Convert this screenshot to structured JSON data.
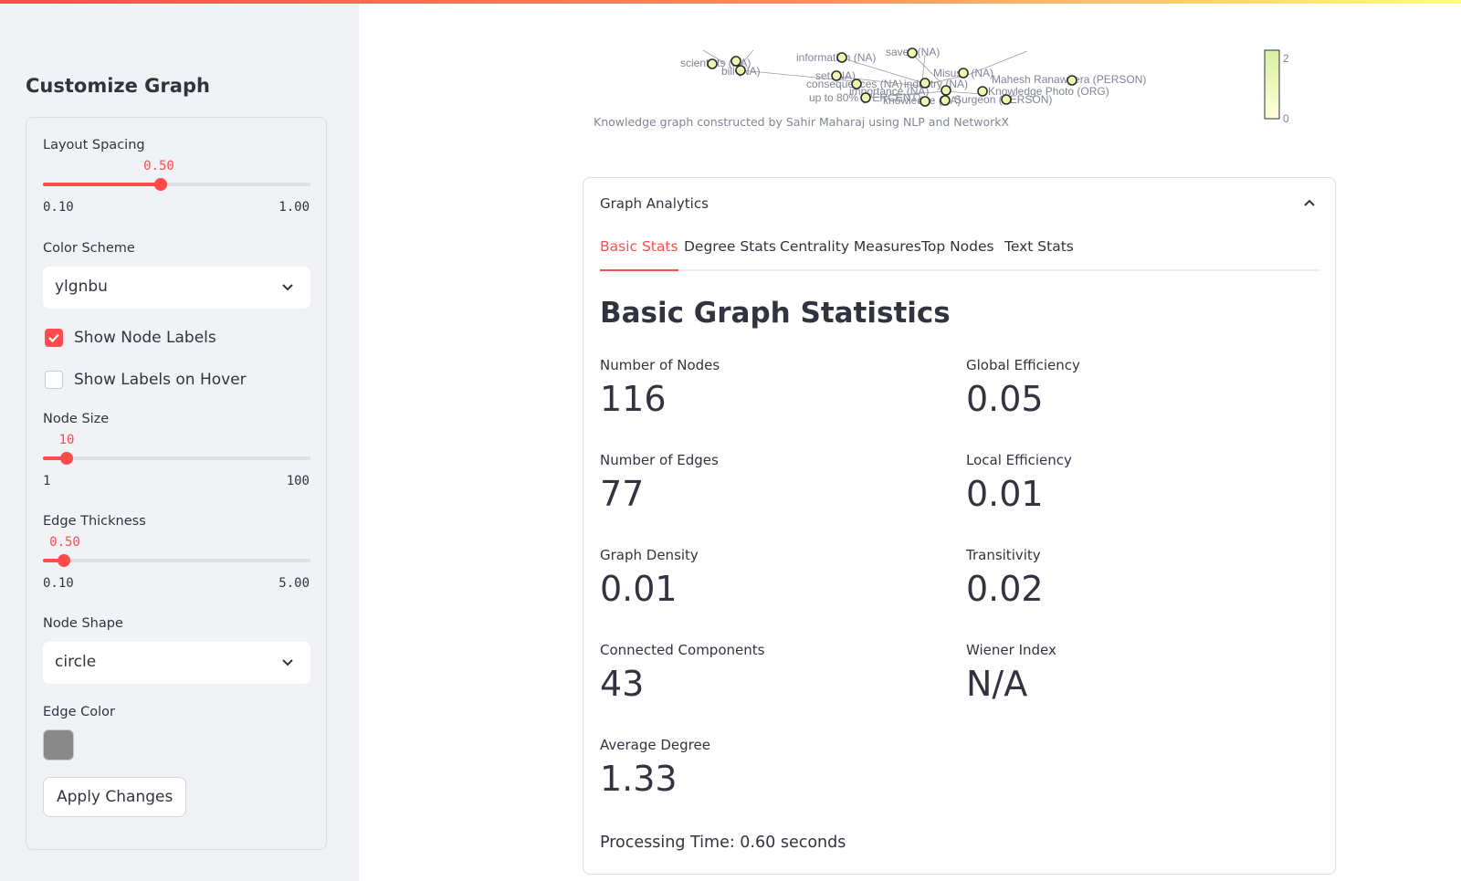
{
  "sidebar": {
    "title": "Customize Graph",
    "layout_spacing": {
      "label": "Layout Spacing",
      "value": "0.50",
      "min": "0.10",
      "max": "1.00",
      "fraction": 0.44
    },
    "color_scheme": {
      "label": "Color Scheme",
      "value": "ylgnbu"
    },
    "show_node_labels": {
      "label": "Show Node Labels",
      "checked": true
    },
    "show_labels_on_hover": {
      "label": "Show Labels on Hover",
      "checked": false
    },
    "node_size": {
      "label": "Node Size",
      "value": "10",
      "min": "1",
      "max": "100",
      "fraction": 0.09
    },
    "edge_thickness": {
      "label": "Edge Thickness",
      "value": "0.50",
      "min": "0.10",
      "max": "5.00",
      "fraction": 0.08
    },
    "node_shape": {
      "label": "Node Shape",
      "value": "circle"
    },
    "edge_color": {
      "label": "Edge Color",
      "color": "#888888"
    },
    "apply_button": "Apply Changes"
  },
  "graph": {
    "caption": "Knowledge graph constructed by Sahir Maharaj using NLP and NetworkX",
    "colorbar_ticks": [
      "2",
      "0"
    ],
    "node_labels": [
      "scientists (NA)",
      "bill (NA)",
      "information (NA)",
      "saves (NA)",
      "set (NA)",
      "consequences (NA)",
      "industry (NA)",
      "importance (NA)",
      "up to 80% (PERCENT)",
      "knowledge (NA)",
      "Misuse (NA)",
      "Mahesh Ranaweera (PERSON)",
      "Knowledge Photo (ORG)",
      "Surgeon (PERSON)"
    ]
  },
  "analytics": {
    "title": "Graph Analytics",
    "tabs": [
      "Basic Stats",
      "Degree Stats",
      "Centrality Measures",
      "Top Nodes",
      "Text Stats"
    ],
    "active_tab": "Basic Stats",
    "heading": "Basic Graph Statistics",
    "metrics": {
      "nodes": {
        "label": "Number of Nodes",
        "value": "116"
      },
      "edges": {
        "label": "Number of Edges",
        "value": "77"
      },
      "density": {
        "label": "Graph Density",
        "value": "0.01"
      },
      "components": {
        "label": "Connected Components",
        "value": "43"
      },
      "avg_degree": {
        "label": "Average Degree",
        "value": "1.33"
      },
      "global_eff": {
        "label": "Global Efficiency",
        "value": "0.05"
      },
      "local_eff": {
        "label": "Local Efficiency",
        "value": "0.01"
      },
      "transitivity": {
        "label": "Transitivity",
        "value": "0.02"
      },
      "wiener": {
        "label": "Wiener Index",
        "value": "N/A"
      }
    },
    "processing_time": "Processing Time: 0.60 seconds"
  },
  "colors": {
    "accent": "#ff4b4b",
    "sidebar_bg": "#f0f2f6",
    "text": "#31333f"
  }
}
